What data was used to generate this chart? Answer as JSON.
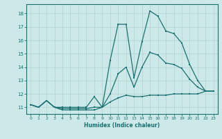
{
  "xlabel": "Humidex (Indice chaleur)",
  "background_color": "#cce8e8",
  "grid_color": "#b8d8d8",
  "line_color": "#1a7070",
  "hours": [
    0,
    1,
    2,
    3,
    4,
    5,
    6,
    7,
    8,
    9,
    10,
    11,
    12,
    13,
    14,
    15,
    16,
    17,
    18,
    19,
    20,
    21,
    22,
    23
  ],
  "max_vals": [
    11.2,
    11.0,
    11.5,
    11.0,
    11.0,
    11.0,
    11.0,
    11.0,
    11.8,
    11.0,
    14.5,
    17.2,
    17.2,
    13.2,
    15.9,
    18.2,
    17.8,
    16.7,
    16.5,
    15.8,
    14.2,
    13.0,
    12.2,
    12.2
  ],
  "min_vals": [
    11.2,
    11.0,
    11.5,
    11.0,
    10.8,
    10.8,
    10.8,
    10.8,
    10.8,
    11.0,
    11.4,
    11.7,
    11.9,
    11.8,
    11.8,
    11.9,
    11.9,
    11.9,
    12.0,
    12.0,
    12.0,
    12.0,
    12.2,
    12.2
  ],
  "mid_vals": [
    11.2,
    11.0,
    11.5,
    11.0,
    10.9,
    10.9,
    10.9,
    10.9,
    11.0,
    11.0,
    12.0,
    13.5,
    14.0,
    12.5,
    14.0,
    15.1,
    14.9,
    14.3,
    14.2,
    13.9,
    13.1,
    12.5,
    12.2,
    12.2
  ],
  "ylim": [
    10.5,
    18.7
  ],
  "xlim": [
    -0.5,
    23.5
  ],
  "yticks": [
    11,
    12,
    13,
    14,
    15,
    16,
    17,
    18
  ],
  "xticks": [
    0,
    1,
    2,
    3,
    4,
    5,
    6,
    7,
    8,
    9,
    10,
    11,
    12,
    13,
    14,
    15,
    16,
    17,
    18,
    19,
    20,
    21,
    22,
    23
  ]
}
